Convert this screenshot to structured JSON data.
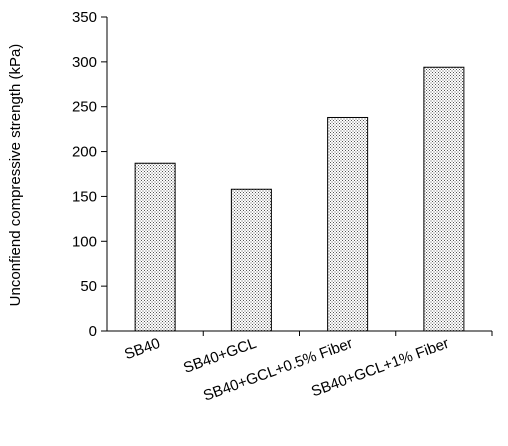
{
  "chart_data": {
    "type": "bar",
    "title": "",
    "xlabel": "",
    "ylabel": "Unconfiend compressive strength (kPa)",
    "categories": [
      "SB40",
      "SB40+GCL",
      "SB40+GCL+0.5% Fiber",
      "SB40+GCL+1% Fiber"
    ],
    "values": [
      187,
      158,
      238,
      294
    ],
    "ylim": [
      0,
      350
    ],
    "yticks": [
      0,
      50,
      100,
      150,
      200,
      250,
      300,
      350
    ],
    "grid": false,
    "bar_fill": "stippled-gray",
    "colors": {
      "bar_stroke": "#000000",
      "bar_dot": "#555555",
      "axis": "#000000"
    }
  }
}
